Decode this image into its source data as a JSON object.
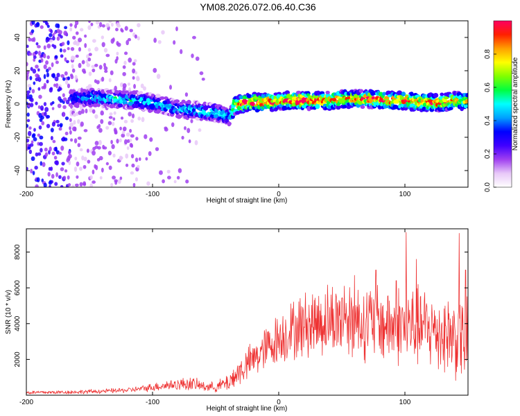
{
  "title": "YM08.2026.072.06.40.C36",
  "chart_data": [
    {
      "type": "heatmap",
      "title": "YM08.2026.072.06.40.C36",
      "xlabel": "Height of straight line (km)",
      "ylabel": "Frequency (Hz)",
      "xlim": [
        -200,
        150
      ],
      "ylim": [
        -50,
        50
      ],
      "x_ticks": [
        -200,
        -100,
        0,
        100
      ],
      "y_ticks": [
        -40,
        -20,
        0,
        20,
        40
      ],
      "colorbar": {
        "label": "Normalized spectral amplitude",
        "range": [
          0,
          1
        ],
        "ticks": [
          0.0,
          0.2,
          0.4,
          0.6,
          0.8
        ],
        "colors": [
          "#ffffff",
          "#e8c8f8",
          "#a040f0",
          "#4000ff",
          "#0000ff",
          "#00a0ff",
          "#00ffff",
          "#00ff40",
          "#80ff00",
          "#ffff00",
          "#ffa000",
          "#ff2000",
          "#ff0060"
        ]
      },
      "ridge": {
        "x": [
          -165,
          -150,
          -130,
          -110,
          -95,
          -80,
          -65,
          -55,
          -45,
          -38,
          -35,
          -25,
          -15,
          -5,
          0,
          10,
          20,
          30,
          40,
          50,
          60,
          70,
          80,
          90,
          100,
          110,
          120,
          130,
          140,
          150
        ],
        "freq": [
          3,
          4,
          3,
          2,
          0,
          -3,
          -4,
          -5,
          -6,
          -8,
          -1,
          1,
          1,
          1,
          2,
          2,
          2,
          2,
          2,
          3,
          3,
          3,
          3,
          2,
          2,
          1,
          1,
          1,
          2,
          2
        ],
        "amplitude": [
          0.35,
          0.4,
          0.45,
          0.45,
          0.45,
          0.4,
          0.45,
          0.5,
          0.5,
          0.45,
          0.75,
          0.9,
          0.95,
          0.9,
          0.85,
          0.9,
          0.95,
          0.9,
          0.85,
          0.75,
          0.8,
          0.85,
          0.9,
          0.85,
          0.8,
          0.85,
          0.85,
          0.8,
          0.75,
          0.7
        ]
      }
    },
    {
      "type": "line",
      "xlabel": "Height of straight line (km)",
      "ylabel": "SNR (10 * v/v)",
      "xlim": [
        -200,
        150
      ],
      "ylim": [
        0,
        9300
      ],
      "x_ticks": [
        -200,
        -100,
        0,
        100
      ],
      "y_ticks": [
        2000,
        4000,
        6000,
        8000
      ],
      "series": [
        {
          "name": "SNR",
          "color": "#ee3333",
          "x": [
            -200,
            -180,
            -160,
            -140,
            -120,
            -110,
            -100,
            -90,
            -80,
            -70,
            -60,
            -50,
            -40,
            -30,
            -20,
            -10,
            0,
            10,
            20,
            30,
            40,
            50,
            60,
            70,
            80,
            90,
            100,
            110,
            120,
            130,
            140,
            150
          ],
          "mean": [
            150,
            160,
            180,
            220,
            280,
            350,
            450,
            550,
            600,
            650,
            500,
            450,
            700,
            1400,
            2000,
            2600,
            3200,
            3600,
            3900,
            4100,
            4200,
            4300,
            4200,
            4100,
            4000,
            3900,
            3900,
            3800,
            3700,
            3500,
            3300,
            3000
          ],
          "spread": [
            100,
            100,
            110,
            120,
            140,
            160,
            220,
            280,
            320,
            380,
            280,
            260,
            500,
            800,
            1000,
            1200,
            1400,
            1600,
            1800,
            1900,
            2000,
            2100,
            2100,
            2100,
            2100,
            2100,
            2200,
            2200,
            2200,
            2200,
            2300,
            2300
          ],
          "peaks": [
            [
              101,
              9100
            ],
            [
              143,
              9050
            ],
            [
              77,
              7000
            ],
            [
              109,
              7600
            ],
            [
              148,
              7000
            ],
            [
              93,
              6400
            ],
            [
              60,
              6700
            ],
            [
              52,
              6100
            ]
          ]
        }
      ]
    }
  ]
}
